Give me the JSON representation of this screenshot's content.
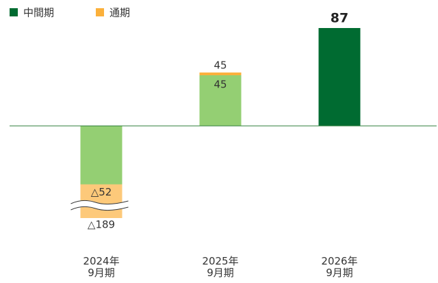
{
  "chart_data": {
    "type": "bar",
    "categories": [
      "2024年\n9月期",
      "2025年\n9月期",
      "2026年\n9月期"
    ],
    "series": [
      {
        "name": "中間期",
        "color": "#006b31",
        "bar_colors": [
          "#94cf73",
          "#94cf73",
          "#006b31"
        ],
        "values": [
          -52,
          45,
          87
        ],
        "value_labels": [
          "△52",
          "45",
          "87"
        ]
      },
      {
        "name": "通期",
        "color": "#fbb03b",
        "bar_colors": [
          "#fdc97a",
          "#fbb03b",
          null
        ],
        "values": [
          -189,
          45,
          null
        ],
        "value_labels": [
          "△189",
          "45",
          null
        ]
      }
    ],
    "ylim": [
      -82,
      87
    ],
    "legend": "top-left"
  }
}
